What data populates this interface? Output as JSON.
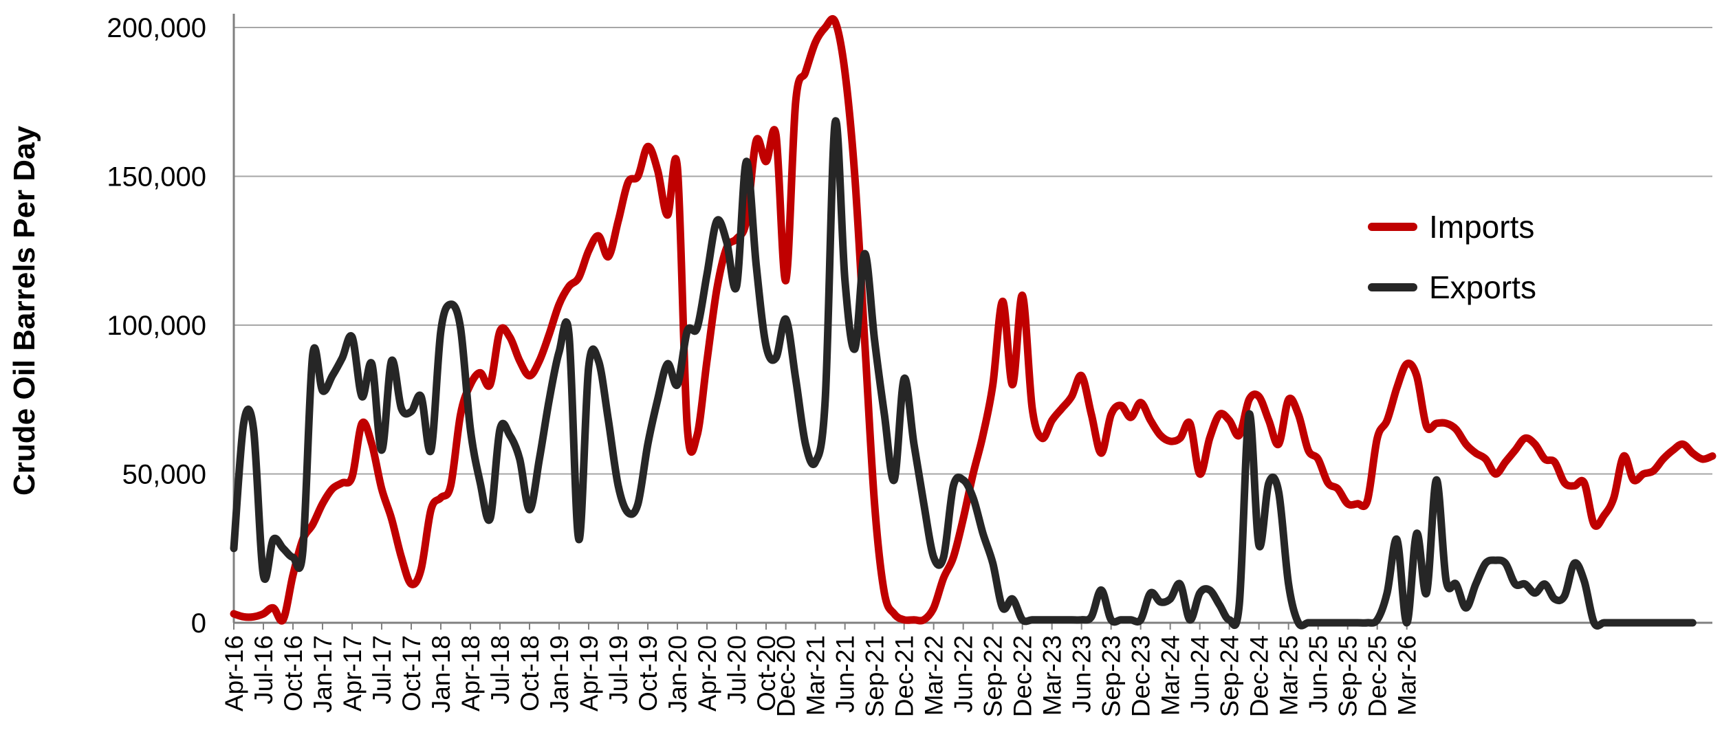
{
  "chart_data": {
    "type": "line",
    "ylabel": "Crude Oil Barrels Per Day",
    "xlabel": "",
    "ylim": [
      0,
      200000
    ],
    "yticks": [
      0,
      50000,
      100000,
      150000,
      200000
    ],
    "ytick_labels": [
      "0",
      "50,000",
      "100,000",
      "150,000",
      "200,000"
    ],
    "grid": "horizontal",
    "legend_position": "right",
    "x_tick_labels": [
      "Apr-16",
      "Jul-16",
      "Oct-16",
      "Jan-17",
      "Apr-17",
      "Jul-17",
      "Oct-17",
      "Jan-18",
      "Apr-18",
      "Jul-18",
      "Oct-18",
      "Jan-19",
      "Apr-19",
      "Jul-19",
      "Oct-19",
      "Jan-20",
      "Apr-20",
      "Jul-20",
      "Oct-20",
      "Dec-20",
      "Mar-21",
      "Jun-21",
      "Sep-21",
      "Dec-21",
      "Mar-22",
      "Jun-22",
      "Sep-22",
      "Dec-22",
      "Mar-23",
      "Jun-23",
      "Sep-23",
      "Dec-23",
      "Mar-24",
      "Jun-24",
      "Sep-24",
      "Dec-24",
      "Mar-25",
      "Jun-25",
      "Sep-25",
      "Dec-25",
      "Mar-26"
    ],
    "x_start": "2016-04",
    "series": [
      {
        "name": "Imports",
        "color": "#c00000",
        "values": [
          3000,
          2000,
          2000,
          3000,
          5000,
          1000,
          16000,
          28000,
          33000,
          40000,
          45000,
          47000,
          49000,
          67000,
          60000,
          45000,
          35000,
          22000,
          13000,
          18000,
          38000,
          42000,
          46000,
          70000,
          80000,
          84000,
          80000,
          98000,
          96000,
          88000,
          83000,
          88000,
          97000,
          107000,
          113000,
          116000,
          125000,
          130000,
          123000,
          135000,
          148000,
          150000,
          160000,
          152000,
          137000,
          153000,
          66000,
          63000,
          88000,
          112000,
          126000,
          129000,
          135000,
          162000,
          155000,
          164000,
          115000,
          175000,
          185000,
          195000,
          200000,
          202000,
          185000,
          150000,
          95000,
          40000,
          10000,
          3000,
          1000,
          1000,
          1000,
          5000,
          15000,
          22000,
          35000,
          50000,
          63000,
          80000,
          108000,
          80000,
          110000,
          72000,
          62000,
          68000,
          72000,
          76000,
          83000,
          70000,
          57000,
          70000,
          73000,
          69000,
          74000,
          68000,
          63000,
          61000,
          62000,
          67000,
          50000,
          62000,
          70000,
          68000,
          63000,
          75000,
          76000,
          68000,
          60000,
          75000,
          70000,
          58000,
          55000,
          47000,
          45000,
          40000,
          40000,
          41000,
          62000,
          68000,
          79000,
          87000,
          83000,
          66000,
          67000,
          67000,
          65000,
          60000,
          57000,
          55000,
          50000,
          54000,
          58000,
          62000,
          60000,
          55000,
          54000,
          47000,
          46000,
          47000,
          33000,
          36000,
          42000,
          56000,
          48000,
          50000,
          51000,
          55000,
          58000,
          60000,
          57000,
          55000,
          56000
        ]
      },
      {
        "name": "Exports",
        "color": "#262626",
        "values": [
          25000,
          67000,
          65000,
          16000,
          28000,
          25000,
          22000,
          24000,
          90000,
          78000,
          83000,
          89000,
          96000,
          76000,
          87000,
          58000,
          88000,
          72000,
          71000,
          76000,
          58000,
          98000,
          107000,
          99000,
          65000,
          47000,
          35000,
          65000,
          63000,
          55000,
          38000,
          55000,
          75000,
          91000,
          97000,
          28000,
          86000,
          88000,
          68000,
          46000,
          37000,
          40000,
          60000,
          75000,
          87000,
          80000,
          98000,
          99000,
          117000,
          135000,
          128000,
          113000,
          155000,
          120000,
          93000,
          89000,
          102000,
          82000,
          60000,
          54000,
          75000,
          168000,
          115000,
          92000,
          124000,
          95000,
          70000,
          48000,
          82000,
          60000,
          40000,
          22000,
          22000,
          46000,
          48000,
          42000,
          30000,
          20000,
          5000,
          8000,
          1000,
          1000,
          1000,
          1000,
          1000,
          1000,
          1000,
          2000,
          11000,
          1000,
          1000,
          1000,
          1000,
          10000,
          7000,
          8000,
          13000,
          1000,
          10000,
          11000,
          6000,
          1000,
          6000,
          70000,
          26000,
          47000,
          44000,
          13000,
          0,
          0,
          0,
          0,
          0,
          0,
          0,
          0,
          1000,
          10000,
          28000,
          0,
          30000,
          10000,
          48000,
          14000,
          13000,
          5000,
          13000,
          20000,
          21000,
          20000,
          13000,
          13000,
          10000,
          13000,
          8000,
          9000,
          20000,
          14000,
          0,
          0,
          0,
          0,
          0,
          0,
          0,
          0,
          0,
          0,
          0
        ]
      }
    ]
  }
}
